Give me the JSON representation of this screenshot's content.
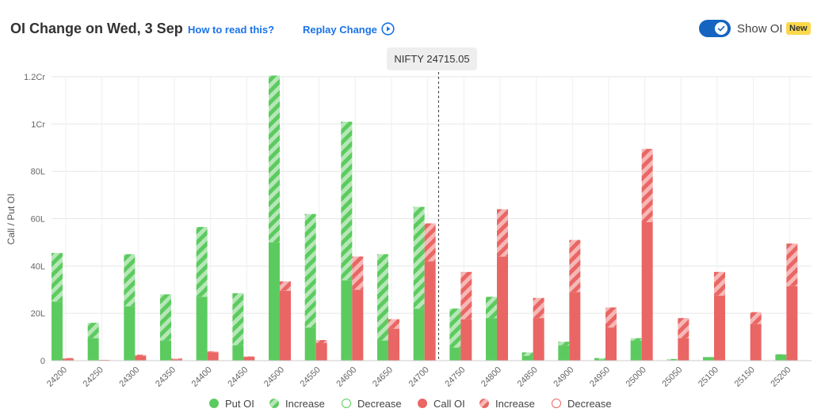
{
  "header": {
    "title": "OI Change on Wed, 3 Sep",
    "how_to_read": "How to read this?",
    "replay": "Replay Change",
    "show_oi_label": "Show OI",
    "show_oi_enabled": true,
    "new_badge": "New"
  },
  "colors": {
    "put": "#5ccb5f",
    "put_increase": "#b7e7b8",
    "call": "#e96664",
    "call_increase": "#f5b8b7",
    "toggle": "#1565c0",
    "link": "#1a73e8",
    "badge": "#fbd94a"
  },
  "chart_data": {
    "type": "bar",
    "title": "OI Change on Wed, 3 Sep",
    "ylabel": "Call / Put OI",
    "xlabel": "",
    "ylim": [
      0,
      12000000
    ],
    "y_ticks": [
      {
        "value": 0,
        "label": "0"
      },
      {
        "value": 2000000,
        "label": "20L"
      },
      {
        "value": 4000000,
        "label": "40L"
      },
      {
        "value": 6000000,
        "label": "60L"
      },
      {
        "value": 8000000,
        "label": "80L"
      },
      {
        "value": 10000000,
        "label": "1Cr"
      },
      {
        "value": 12000000,
        "label": "1.2Cr"
      }
    ],
    "grid": true,
    "categories": [
      "24200",
      "24250",
      "24300",
      "24350",
      "24400",
      "24450",
      "24500",
      "24550",
      "24600",
      "24650",
      "24700",
      "24750",
      "24800",
      "24850",
      "24900",
      "24950",
      "25000",
      "25050",
      "25100",
      "25150",
      "25200"
    ],
    "spot": {
      "label": "NIFTY 24715.05",
      "value": 24715.05,
      "marker_category": "24700"
    },
    "series": [
      {
        "name": "Put OI",
        "values": [
          2500000,
          950000,
          2300000,
          850000,
          2700000,
          650000,
          5000000,
          1400000,
          3400000,
          850000,
          2200000,
          550000,
          1800000,
          200000,
          650000,
          50000,
          850000,
          20000,
          150000,
          0,
          250000
        ]
      },
      {
        "name": "Increase",
        "values": [
          2050000,
          650000,
          2200000,
          1950000,
          2950000,
          2200000,
          7050000,
          4800000,
          6700000,
          3650000,
          4300000,
          1650000,
          900000,
          150000,
          150000,
          60000,
          100000,
          50000,
          0,
          0,
          20000
        ]
      },
      {
        "name": "Decrease",
        "values": [
          0,
          0,
          0,
          0,
          0,
          0,
          0,
          0,
          0,
          0,
          0,
          0,
          0,
          0,
          0,
          0,
          0,
          0,
          0,
          0,
          0
        ]
      },
      {
        "name": "Call OI",
        "values": [
          80000,
          30000,
          200000,
          60000,
          360000,
          160000,
          2950000,
          750000,
          3000000,
          1350000,
          4200000,
          1750000,
          4400000,
          1800000,
          2900000,
          1400000,
          5850000,
          950000,
          2750000,
          1550000,
          3150000
        ]
      },
      {
        "name": "Increase",
        "values": [
          30000,
          0,
          50000,
          30000,
          30000,
          20000,
          400000,
          120000,
          1400000,
          400000,
          1600000,
          2000000,
          2000000,
          850000,
          2200000,
          850000,
          3100000,
          850000,
          1000000,
          500000,
          1800000
        ]
      },
      {
        "name": "Decrease",
        "values": [
          0,
          0,
          0,
          0,
          0,
          0,
          0,
          0,
          0,
          0,
          0,
          0,
          0,
          0,
          0,
          0,
          0,
          0,
          0,
          0,
          0
        ]
      }
    ]
  },
  "legend": [
    {
      "label": "Put OI",
      "style": "solid-put"
    },
    {
      "label": "Increase",
      "style": "hatch-put"
    },
    {
      "label": "Decrease",
      "style": "outline-put"
    },
    {
      "label": "Call OI",
      "style": "solid-call"
    },
    {
      "label": "Increase",
      "style": "hatch-call"
    },
    {
      "label": "Decrease",
      "style": "outline-call"
    }
  ]
}
